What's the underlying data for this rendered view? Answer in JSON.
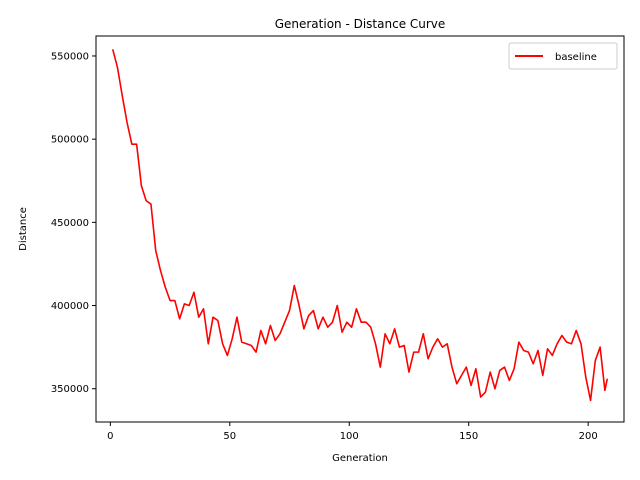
{
  "chart_data": {
    "type": "line",
    "title": "Generation - Distance Curve",
    "xlabel": "Generation",
    "ylabel": "Distance",
    "xlim": [
      -6,
      215
    ],
    "ylim": [
      330000,
      562000
    ],
    "xticks": [
      0,
      50,
      100,
      150,
      200
    ],
    "yticks": [
      350000,
      400000,
      450000,
      500000,
      550000
    ],
    "grid": false,
    "legend_position": "top-right",
    "series": [
      {
        "name": "baseline",
        "color": "#ff0000",
        "x": [
          1,
          3,
          5,
          7,
          9,
          11,
          13,
          15,
          17,
          19,
          21,
          23,
          25,
          27,
          29,
          31,
          33,
          35,
          37,
          39,
          41,
          43,
          45,
          47,
          49,
          51,
          53,
          55,
          57,
          59,
          61,
          63,
          65,
          67,
          69,
          71,
          73,
          75,
          77,
          79,
          81,
          83,
          85,
          87,
          89,
          91,
          93,
          95,
          97,
          99,
          101,
          103,
          105,
          107,
          109,
          111,
          113,
          115,
          117,
          119,
          121,
          123,
          125,
          127,
          129,
          131,
          133,
          135,
          137,
          139,
          141,
          143,
          145,
          147,
          149,
          151,
          153,
          155,
          157,
          159,
          161,
          163,
          165,
          167,
          169,
          171,
          173,
          175,
          177,
          179,
          181,
          183,
          185,
          187,
          189,
          191,
          193,
          195,
          197,
          199,
          201,
          203,
          205,
          207,
          208
        ],
        "y": [
          554000,
          543000,
          526000,
          510000,
          497000,
          497000,
          472000,
          463000,
          461000,
          433000,
          421000,
          411000,
          403000,
          403000,
          392000,
          401000,
          400000,
          408000,
          393000,
          398000,
          377000,
          393000,
          391000,
          377000,
          370000,
          380000,
          393000,
          378000,
          377000,
          376000,
          372000,
          385000,
          377000,
          388000,
          379000,
          383000,
          390000,
          397000,
          412000,
          400000,
          386000,
          394000,
          397000,
          386000,
          393000,
          387000,
          390000,
          400000,
          384000,
          390000,
          387000,
          398000,
          390000,
          390000,
          387000,
          377000,
          363000,
          383000,
          377000,
          386000,
          375000,
          376000,
          360000,
          372000,
          372000,
          383000,
          368000,
          375000,
          380000,
          375000,
          377000,
          363000,
          353000,
          358000,
          363000,
          352000,
          362000,
          345000,
          348000,
          360000,
          350000,
          361000,
          363000,
          355000,
          362000,
          378000,
          373000,
          372000,
          365000,
          373000,
          358000,
          374000,
          370000,
          377000,
          382000,
          378000,
          377000,
          385000,
          377000,
          357000,
          343000,
          367000,
          375000,
          349000,
          356000
        ]
      }
    ]
  }
}
